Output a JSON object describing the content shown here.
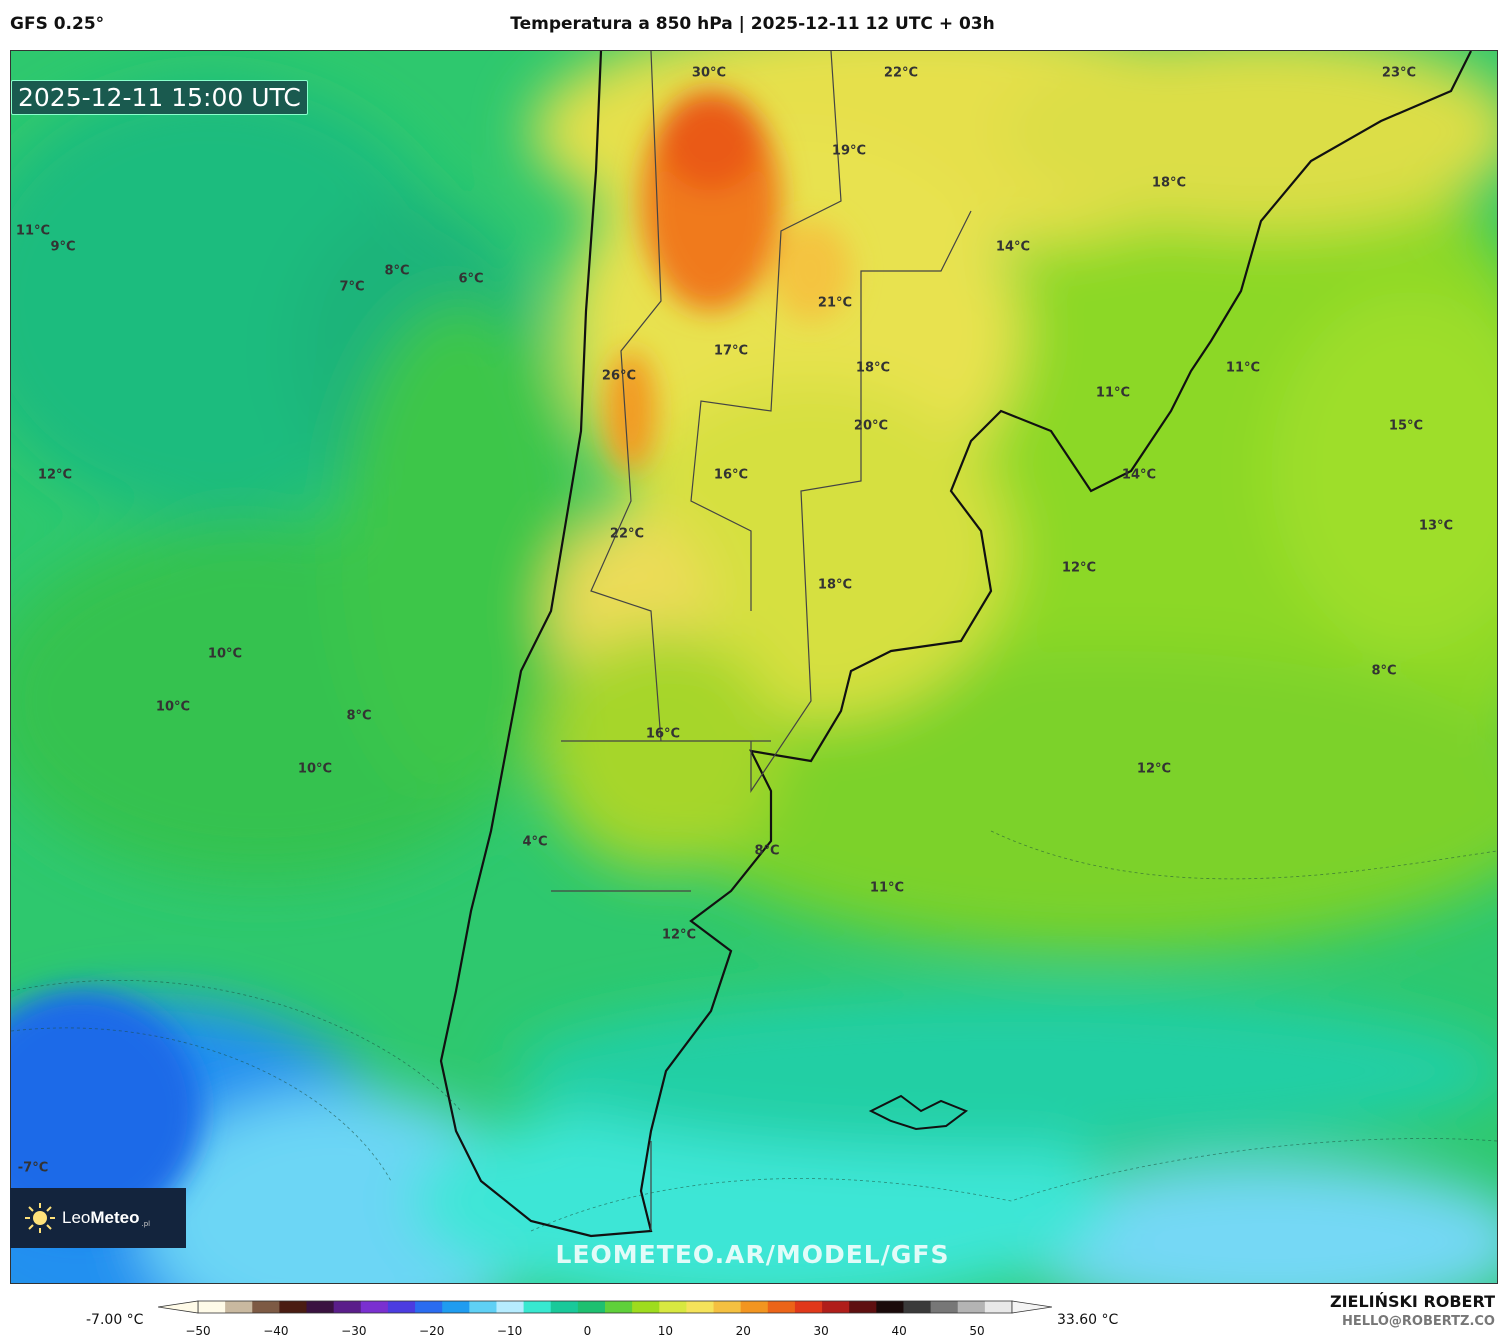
{
  "header": {
    "model": "GFS 0.25°",
    "title": "Temperatura a 850 hPa | 2025-12-11 12 UTC + 03h"
  },
  "map": {
    "valid_time": "2025-12-11 15:00 UTC",
    "labels": [
      "30°C",
      "22°C",
      "23°C",
      "19°C",
      "18°C",
      "14°C",
      "11°C",
      "9°C",
      "8°C",
      "7°C",
      "6°C",
      "21°C",
      "17°C",
      "18°C",
      "26°C",
      "11°C",
      "15°C",
      "20°C",
      "11°C",
      "12°C",
      "14°C",
      "16°C",
      "22°C",
      "13°C",
      "12°C",
      "18°C",
      "10°C",
      "8°C",
      "10°C",
      "8°C",
      "16°C",
      "10°C",
      "12°C",
      "8°C",
      "4°C",
      "11°C",
      "12°C",
      "-7°C"
    ],
    "watermark": "LEOMETEO.AR/MODEL/GFS"
  },
  "logo": {
    "name_light": "Leo",
    "name_bold": "Meteo",
    "suffix": ".pl"
  },
  "colorbar": {
    "min_label": "-7.00 °C",
    "max_label": "33.60 °C",
    "ticks": [
      "−50",
      "−40",
      "−30",
      "−20",
      "−10",
      "0",
      "10",
      "20",
      "30",
      "40",
      "50"
    ],
    "colors": [
      "#fffbe8",
      "#c9b9a0",
      "#7d5a44",
      "#4a1c12",
      "#3a1240",
      "#5a1e8a",
      "#7a30d0",
      "#4b3ce0",
      "#2a6cf0",
      "#1f9cf0",
      "#5fd0f5",
      "#b6ecff",
      "#38e8d0",
      "#19c99a",
      "#1ec070",
      "#5fd03a",
      "#9edc1e",
      "#d8e840",
      "#f5e35a",
      "#f4c040",
      "#f29520",
      "#ec6418",
      "#e0381a",
      "#b01e1a",
      "#5e0f10",
      "#1a0a0a",
      "#3a3a3a",
      "#777777",
      "#b4b4b4",
      "#e8e8e8"
    ]
  },
  "credit": {
    "name": "ZIELIŃSKI ROBERT",
    "email": "HELLO@ROBERTZ.CO"
  }
}
